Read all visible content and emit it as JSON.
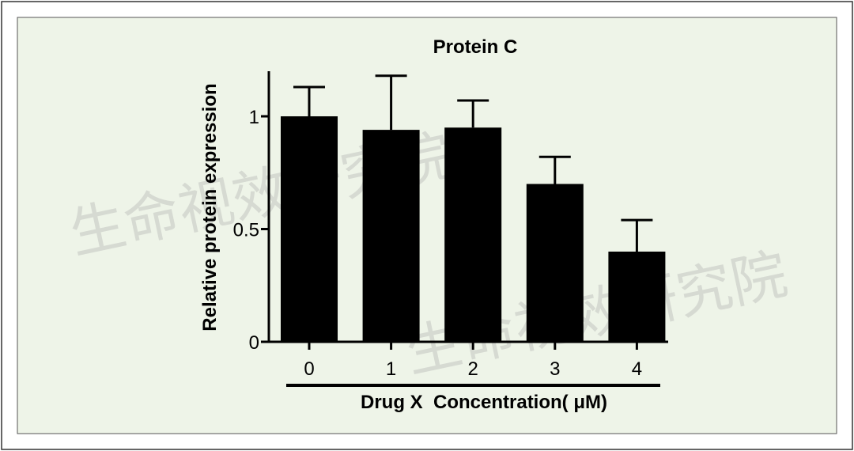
{
  "chart_data": {
    "type": "bar",
    "title": "Protein C",
    "x_label": "Drug X  Concentration( μM)",
    "y_label": "Relative protein expression",
    "categories": [
      "0",
      "1",
      "2",
      "3",
      "4"
    ],
    "values": [
      1.0,
      0.94,
      0.95,
      0.7,
      0.4
    ],
    "errors": [
      0.13,
      0.24,
      0.12,
      0.12,
      0.14
    ],
    "color": "#000000",
    "ylim": [
      0,
      1.2
    ],
    "yticks": [
      0,
      0.5,
      1
    ],
    "watermark": "生命视效研究院"
  }
}
